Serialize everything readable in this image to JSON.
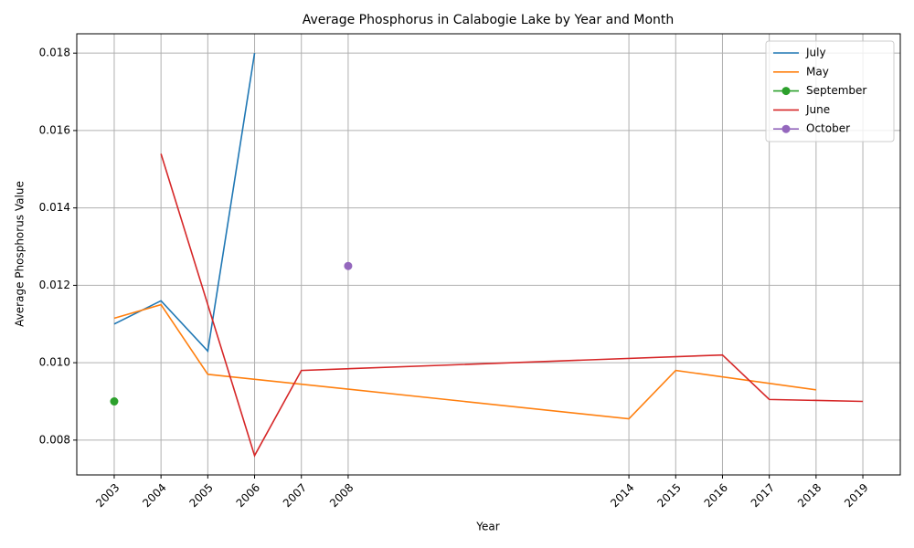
{
  "chart_data": {
    "type": "line",
    "title": "Average Phosphorus in Calabogie Lake by Year and Month",
    "x_label": "Year",
    "y_label": "Average Phosphorus Value",
    "xlim": [
      2002.2,
      2019.8
    ],
    "xticks": [
      2003,
      2004,
      2005,
      2006,
      2007,
      2008,
      2014,
      2015,
      2016,
      2017,
      2018,
      2019
    ],
    "ylim": [
      0.0071,
      0.0185
    ],
    "yticks": [
      0.008,
      {
        "value": 0.01,
        "label": "0.010"
      },
      0.012,
      0.014,
      0.016,
      0.018
    ],
    "grid": true,
    "legend": "upper right",
    "series": [
      {
        "name": "July",
        "color": "#1f77b4",
        "marker": false,
        "x": [
          2003,
          2004,
          2005,
          2006
        ],
        "values": [
          0.011,
          0.0116,
          0.0103,
          0.018
        ]
      },
      {
        "name": "May",
        "color": "#ff7f0e",
        "marker": false,
        "x": [
          2003,
          2004,
          2005,
          2014,
          2015,
          2018
        ],
        "values": [
          0.01115,
          0.0115,
          0.0097,
          0.00855,
          0.0098,
          0.0093
        ]
      },
      {
        "name": "September",
        "color": "#2ca02c",
        "marker": true,
        "x": [
          2003
        ],
        "values": [
          0.009
        ]
      },
      {
        "name": "June",
        "color": "#d62728",
        "marker": false,
        "x": [
          2004,
          2006,
          2007,
          2016,
          2017,
          2019
        ],
        "values": [
          0.0154,
          0.0076,
          0.0098,
          0.0102,
          0.00905,
          0.009
        ]
      },
      {
        "name": "October",
        "color": "#9467bd",
        "marker": true,
        "x": [
          2008
        ],
        "values": [
          0.0125
        ]
      }
    ]
  }
}
